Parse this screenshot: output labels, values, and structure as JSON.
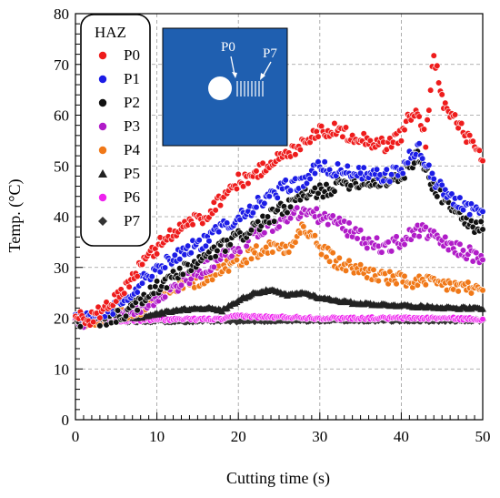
{
  "chart_data": {
    "type": "scatter",
    "xlabel": "Cutting time (s)",
    "ylabel": "Temp. (°C)",
    "xlim": [
      0,
      50
    ],
    "ylim": [
      0,
      80
    ],
    "x_ticks": [
      0,
      10,
      20,
      30,
      40,
      50
    ],
    "y_ticks": [
      0,
      10,
      20,
      30,
      40,
      50,
      60,
      70,
      80
    ],
    "grid": true,
    "legend_title": "HAZ",
    "legend_position": "top-left",
    "inset": {
      "labels": [
        "P0",
        "P7"
      ],
      "background": "#1f5fb0"
    },
    "series": [
      {
        "name": "P0",
        "color": "#ee1c1c",
        "marker": "circle",
        "points": [
          [
            0,
            20
          ],
          [
            2,
            20
          ],
          [
            4,
            22
          ],
          [
            6,
            26
          ],
          [
            8,
            30
          ],
          [
            10,
            34
          ],
          [
            12,
            37
          ],
          [
            14,
            39
          ],
          [
            16,
            40
          ],
          [
            18,
            44
          ],
          [
            20,
            47
          ],
          [
            22,
            48
          ],
          [
            24,
            51
          ],
          [
            26,
            52
          ],
          [
            28,
            55
          ],
          [
            30,
            57
          ],
          [
            32,
            57
          ],
          [
            34,
            56
          ],
          [
            36,
            55
          ],
          [
            38,
            54
          ],
          [
            40,
            56
          ],
          [
            41,
            60
          ],
          [
            42,
            60
          ],
          [
            43,
            55
          ],
          [
            44,
            72.5
          ],
          [
            45,
            63
          ],
          [
            46,
            60
          ],
          [
            48,
            56
          ],
          [
            50,
            51
          ]
        ]
      },
      {
        "name": "P1",
        "color": "#1c1ce6",
        "marker": "circle",
        "points": [
          [
            0,
            20
          ],
          [
            2,
            20
          ],
          [
            4,
            21
          ],
          [
            6,
            24
          ],
          [
            8,
            27
          ],
          [
            10,
            30
          ],
          [
            12,
            32
          ],
          [
            14,
            34
          ],
          [
            16,
            35
          ],
          [
            18,
            38
          ],
          [
            20,
            40
          ],
          [
            22,
            42
          ],
          [
            24,
            44
          ],
          [
            26,
            46
          ],
          [
            28,
            47
          ],
          [
            30,
            50
          ],
          [
            32,
            49
          ],
          [
            34,
            49
          ],
          [
            36,
            48
          ],
          [
            38,
            48
          ],
          [
            40,
            49
          ],
          [
            42,
            54
          ],
          [
            44,
            47
          ],
          [
            46,
            44
          ],
          [
            48,
            42
          ],
          [
            50,
            41
          ]
        ]
      },
      {
        "name": "P2",
        "color": "#111111",
        "marker": "circle",
        "points": [
          [
            0,
            19.5
          ],
          [
            2,
            19.5
          ],
          [
            4,
            20
          ],
          [
            6,
            21
          ],
          [
            8,
            23
          ],
          [
            10,
            26
          ],
          [
            12,
            28
          ],
          [
            14,
            30
          ],
          [
            16,
            32
          ],
          [
            18,
            34
          ],
          [
            20,
            36
          ],
          [
            22,
            38
          ],
          [
            24,
            40
          ],
          [
            26,
            42
          ],
          [
            28,
            44
          ],
          [
            30,
            45
          ],
          [
            32,
            46
          ],
          [
            34,
            47
          ],
          [
            36,
            47
          ],
          [
            38,
            47
          ],
          [
            40,
            48
          ],
          [
            42,
            52
          ],
          [
            44,
            46
          ],
          [
            46,
            42
          ],
          [
            48,
            39
          ],
          [
            50,
            37.5
          ]
        ]
      },
      {
        "name": "P3",
        "color": "#b01cc8",
        "marker": "circle",
        "points": [
          [
            0,
            19.5
          ],
          [
            4,
            20
          ],
          [
            8,
            22
          ],
          [
            12,
            26
          ],
          [
            16,
            30
          ],
          [
            20,
            34
          ],
          [
            22,
            37
          ],
          [
            24,
            38
          ],
          [
            26,
            40
          ],
          [
            28,
            41
          ],
          [
            30,
            40
          ],
          [
            32,
            39
          ],
          [
            34,
            37
          ],
          [
            36,
            35
          ],
          [
            38,
            34
          ],
          [
            40,
            35
          ],
          [
            42,
            37.5
          ],
          [
            44,
            36
          ],
          [
            46,
            34
          ],
          [
            48,
            33
          ],
          [
            50,
            31.5
          ]
        ]
      },
      {
        "name": "P4",
        "color": "#f07818",
        "marker": "circle",
        "points": [
          [
            0,
            19.5
          ],
          [
            4,
            20
          ],
          [
            6,
            21
          ],
          [
            8,
            22
          ],
          [
            10,
            24
          ],
          [
            12,
            25.5
          ],
          [
            14,
            27
          ],
          [
            16,
            28
          ],
          [
            18,
            30
          ],
          [
            20,
            31.5
          ],
          [
            22,
            33
          ],
          [
            24,
            34
          ],
          [
            26,
            34
          ],
          [
            28,
            38
          ],
          [
            30,
            34
          ],
          [
            32,
            31
          ],
          [
            34,
            30
          ],
          [
            36,
            29
          ],
          [
            38,
            28
          ],
          [
            40,
            27.5
          ],
          [
            42,
            27
          ],
          [
            44,
            26.8
          ],
          [
            46,
            26.5
          ],
          [
            48,
            26
          ],
          [
            50,
            25.5
          ]
        ]
      },
      {
        "name": "P5",
        "color": "#222222",
        "marker": "triangle",
        "points": [
          [
            0,
            19.5
          ],
          [
            5,
            19.8
          ],
          [
            8,
            20.2
          ],
          [
            10,
            20.8
          ],
          [
            12,
            21.5
          ],
          [
            14,
            21.8
          ],
          [
            16,
            22
          ],
          [
            18,
            21.5
          ],
          [
            20,
            23.5
          ],
          [
            22,
            25
          ],
          [
            24,
            25.5
          ],
          [
            26,
            24.5
          ],
          [
            28,
            25
          ],
          [
            30,
            24
          ],
          [
            32,
            23.5
          ],
          [
            34,
            23
          ],
          [
            36,
            22.8
          ],
          [
            38,
            22.6
          ],
          [
            40,
            22.5
          ],
          [
            42,
            22.3
          ],
          [
            44,
            22.2
          ],
          [
            46,
            22
          ],
          [
            48,
            22
          ],
          [
            50,
            21.8
          ]
        ]
      },
      {
        "name": "P6",
        "color": "#ee22ee",
        "marker": "circle",
        "points": [
          [
            0,
            19.5
          ],
          [
            5,
            19.5
          ],
          [
            10,
            19.7
          ],
          [
            14,
            19.8
          ],
          [
            18,
            19.8
          ],
          [
            20,
            20.5
          ],
          [
            22,
            20.3
          ],
          [
            24,
            20.2
          ],
          [
            26,
            20.2
          ],
          [
            28,
            20.1
          ],
          [
            30,
            20
          ],
          [
            35,
            20
          ],
          [
            40,
            20
          ],
          [
            45,
            20
          ],
          [
            50,
            19.8
          ]
        ]
      },
      {
        "name": "P7",
        "color": "#333333",
        "marker": "diamond",
        "points": [
          [
            0,
            19.5
          ],
          [
            10,
            19.5
          ],
          [
            20,
            19.5
          ],
          [
            25,
            19.6
          ],
          [
            30,
            19.6
          ],
          [
            35,
            19.6
          ],
          [
            40,
            19.6
          ],
          [
            45,
            19.6
          ],
          [
            50,
            19.6
          ]
        ]
      }
    ]
  }
}
